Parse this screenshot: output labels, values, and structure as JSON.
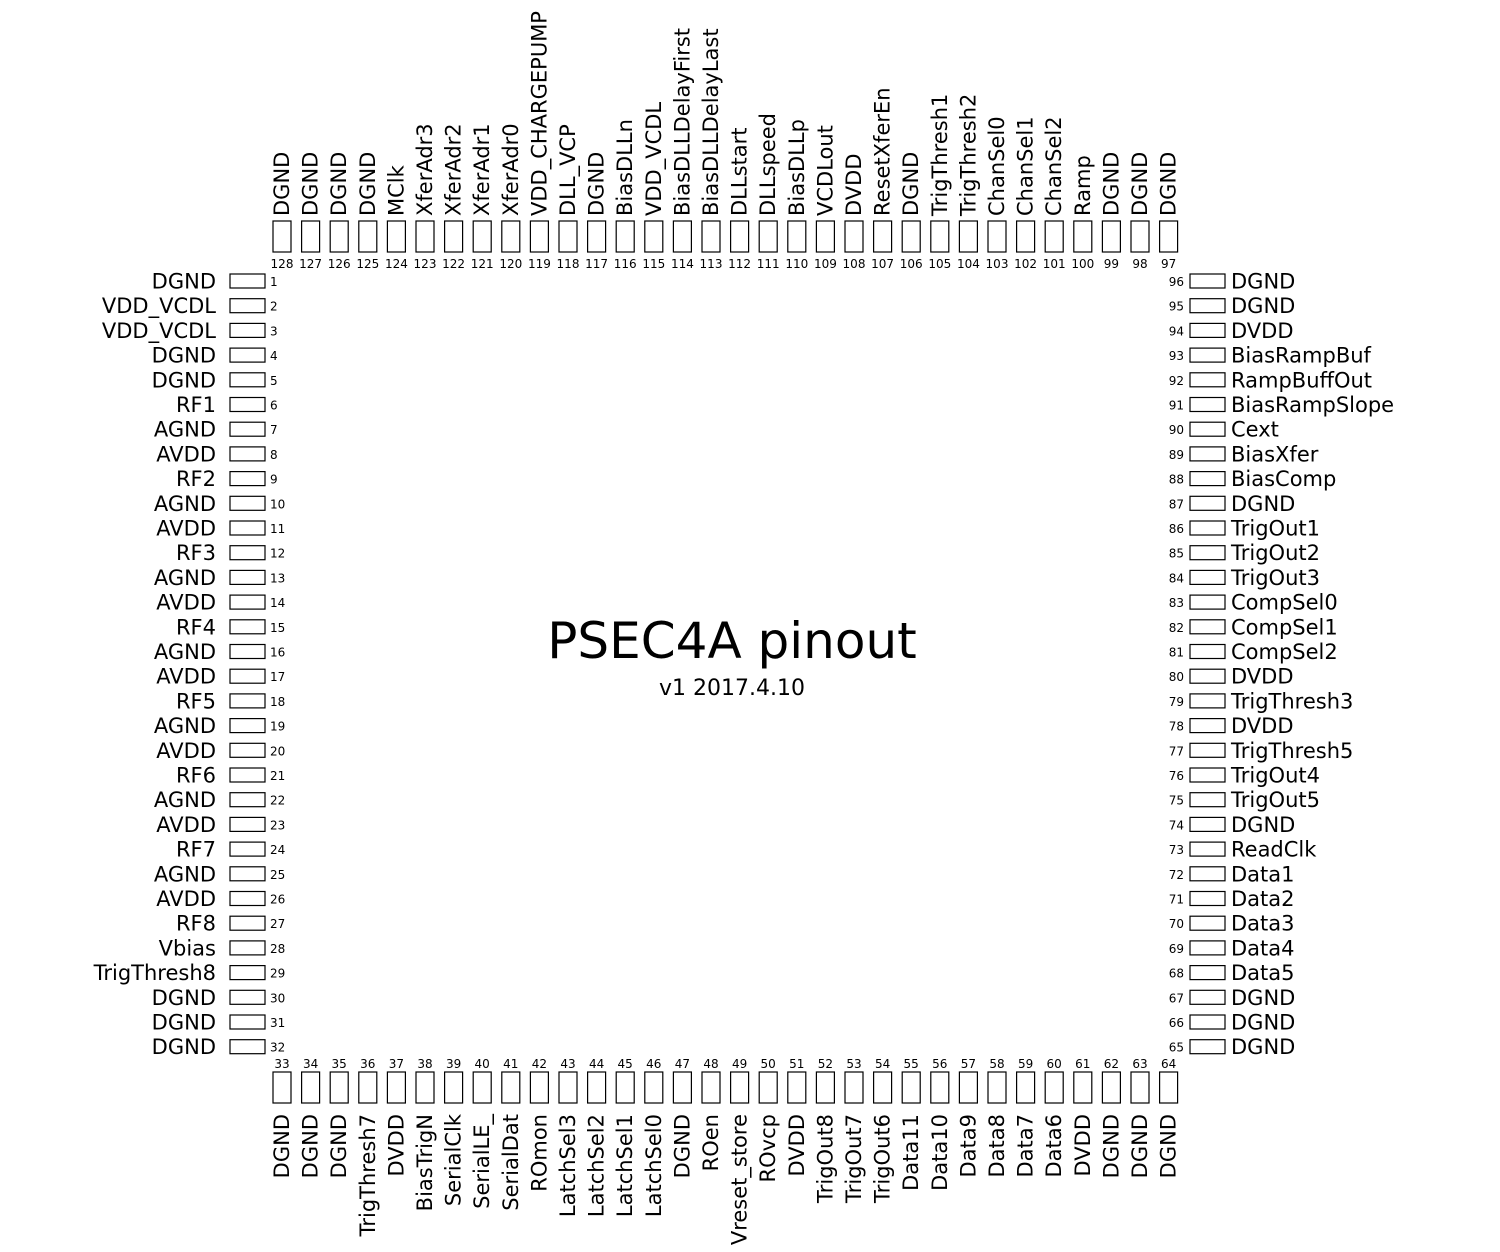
{
  "title": "PSEC4A pinout",
  "subtitle": "v1  2017.4.10",
  "colors": {
    "stroke": "#000000",
    "background": "#ffffff"
  },
  "pins_left": [
    {
      "num": "1",
      "name": "DGND"
    },
    {
      "num": "2",
      "name": "VDD_VCDL"
    },
    {
      "num": "3",
      "name": "VDD_VCDL"
    },
    {
      "num": "4",
      "name": "DGND"
    },
    {
      "num": "5",
      "name": "DGND"
    },
    {
      "num": "6",
      "name": "RF1"
    },
    {
      "num": "7",
      "name": "AGND"
    },
    {
      "num": "8",
      "name": "AVDD"
    },
    {
      "num": "9",
      "name": "RF2"
    },
    {
      "num": "10",
      "name": "AGND"
    },
    {
      "num": "11",
      "name": "AVDD"
    },
    {
      "num": "12",
      "name": "RF3"
    },
    {
      "num": "13",
      "name": "AGND"
    },
    {
      "num": "14",
      "name": "AVDD"
    },
    {
      "num": "15",
      "name": "RF4"
    },
    {
      "num": "16",
      "name": "AGND"
    },
    {
      "num": "17",
      "name": "AVDD"
    },
    {
      "num": "18",
      "name": "RF5"
    },
    {
      "num": "19",
      "name": "AGND"
    },
    {
      "num": "20",
      "name": "AVDD"
    },
    {
      "num": "21",
      "name": "RF6"
    },
    {
      "num": "22",
      "name": "AGND"
    },
    {
      "num": "23",
      "name": "AVDD"
    },
    {
      "num": "24",
      "name": "RF7"
    },
    {
      "num": "25",
      "name": "AGND"
    },
    {
      "num": "26",
      "name": "AVDD"
    },
    {
      "num": "27",
      "name": "RF8"
    },
    {
      "num": "28",
      "name": "Vbias"
    },
    {
      "num": "29",
      "name": "TrigThresh8"
    },
    {
      "num": "30",
      "name": "DGND"
    },
    {
      "num": "31",
      "name": "DGND"
    },
    {
      "num": "32",
      "name": "DGND"
    }
  ],
  "pins_bottom": [
    {
      "num": "33",
      "name": "DGND"
    },
    {
      "num": "34",
      "name": "DGND"
    },
    {
      "num": "35",
      "name": "DGND"
    },
    {
      "num": "36",
      "name": "TrigThresh7"
    },
    {
      "num": "37",
      "name": "DVDD"
    },
    {
      "num": "38",
      "name": "BiasTrigN"
    },
    {
      "num": "39",
      "name": "SerialClk"
    },
    {
      "num": "40",
      "name": "SerialLE_"
    },
    {
      "num": "41",
      "name": "SerialDat"
    },
    {
      "num": "42",
      "name": "ROmon"
    },
    {
      "num": "43",
      "name": "LatchSel3"
    },
    {
      "num": "44",
      "name": "LatchSel2"
    },
    {
      "num": "45",
      "name": "LatchSel1"
    },
    {
      "num": "46",
      "name": "LatchSel0"
    },
    {
      "num": "47",
      "name": "DGND"
    },
    {
      "num": "48",
      "name": "ROen"
    },
    {
      "num": "49",
      "name": "Vreset_store"
    },
    {
      "num": "50",
      "name": "ROvcp"
    },
    {
      "num": "51",
      "name": "DVDD"
    },
    {
      "num": "52",
      "name": "TrigOut8"
    },
    {
      "num": "53",
      "name": "TrigOut7"
    },
    {
      "num": "54",
      "name": "TrigOut6"
    },
    {
      "num": "55",
      "name": "Data11"
    },
    {
      "num": "56",
      "name": "Data10"
    },
    {
      "num": "57",
      "name": "Data9"
    },
    {
      "num": "58",
      "name": "Data8"
    },
    {
      "num": "59",
      "name": "Data7"
    },
    {
      "num": "60",
      "name": "Data6"
    },
    {
      "num": "61",
      "name": "DVDD"
    },
    {
      "num": "62",
      "name": "DGND"
    },
    {
      "num": "63",
      "name": "DGND"
    },
    {
      "num": "64",
      "name": "DGND"
    }
  ],
  "pins_right": [
    {
      "num": "96",
      "name": "DGND"
    },
    {
      "num": "95",
      "name": "DGND"
    },
    {
      "num": "94",
      "name": "DVDD"
    },
    {
      "num": "93",
      "name": "BiasRampBuf"
    },
    {
      "num": "92",
      "name": "RampBuffOut"
    },
    {
      "num": "91",
      "name": "BiasRampSlope"
    },
    {
      "num": "90",
      "name": "Cext"
    },
    {
      "num": "89",
      "name": "BiasXfer"
    },
    {
      "num": "88",
      "name": "BiasComp"
    },
    {
      "num": "87",
      "name": "DGND"
    },
    {
      "num": "86",
      "name": "TrigOut1"
    },
    {
      "num": "85",
      "name": "TrigOut2"
    },
    {
      "num": "84",
      "name": "TrigOut3"
    },
    {
      "num": "83",
      "name": "CompSel0"
    },
    {
      "num": "82",
      "name": "CompSel1"
    },
    {
      "num": "81",
      "name": "CompSel2"
    },
    {
      "num": "80",
      "name": "DVDD"
    },
    {
      "num": "79",
      "name": "TrigThresh3"
    },
    {
      "num": "78",
      "name": "DVDD"
    },
    {
      "num": "77",
      "name": "TrigThresh5"
    },
    {
      "num": "76",
      "name": "TrigOut4"
    },
    {
      "num": "75",
      "name": "TrigOut5"
    },
    {
      "num": "74",
      "name": "DGND"
    },
    {
      "num": "73",
      "name": "ReadClk"
    },
    {
      "num": "72",
      "name": "Data1"
    },
    {
      "num": "71",
      "name": "Data2"
    },
    {
      "num": "70",
      "name": "Data3"
    },
    {
      "num": "69",
      "name": "Data4"
    },
    {
      "num": "68",
      "name": "Data5"
    },
    {
      "num": "67",
      "name": "DGND"
    },
    {
      "num": "66",
      "name": "DGND"
    },
    {
      "num": "65",
      "name": "DGND"
    }
  ],
  "pins_top": [
    {
      "num": "128",
      "name": "DGND"
    },
    {
      "num": "127",
      "name": "DGND"
    },
    {
      "num": "126",
      "name": "DGND"
    },
    {
      "num": "125",
      "name": "DGND"
    },
    {
      "num": "124",
      "name": "MClk"
    },
    {
      "num": "123",
      "name": "XferAdr3"
    },
    {
      "num": "122",
      "name": "XferAdr2"
    },
    {
      "num": "121",
      "name": "XferAdr1"
    },
    {
      "num": "120",
      "name": "XferAdr0"
    },
    {
      "num": "119",
      "name": "VDD_CHARGEPUMP"
    },
    {
      "num": "118",
      "name": "DLL_VCP"
    },
    {
      "num": "117",
      "name": "DGND"
    },
    {
      "num": "116",
      "name": "BiasDLLn"
    },
    {
      "num": "115",
      "name": "VDD_VCDL"
    },
    {
      "num": "114",
      "name": "BiasDLLDelayFirst"
    },
    {
      "num": "113",
      "name": "BiasDLLDelayLast"
    },
    {
      "num": "112",
      "name": "DLLstart"
    },
    {
      "num": "111",
      "name": "DLLspeed"
    },
    {
      "num": "110",
      "name": "BiasDLLp"
    },
    {
      "num": "109",
      "name": "VCDLout"
    },
    {
      "num": "108",
      "name": "DVDD"
    },
    {
      "num": "107",
      "name": "ResetXferEn"
    },
    {
      "num": "106",
      "name": "DGND"
    },
    {
      "num": "105",
      "name": "TrigThresh1"
    },
    {
      "num": "104",
      "name": "TrigThresh2"
    },
    {
      "num": "103",
      "name": "ChanSel0"
    },
    {
      "num": "102",
      "name": "ChanSel1"
    },
    {
      "num": "101",
      "name": "ChanSel2"
    },
    {
      "num": "100",
      "name": "Ramp"
    },
    {
      "num": "99",
      "name": "DGND"
    },
    {
      "num": "98",
      "name": "DGND"
    },
    {
      "num": "97",
      "name": "DGND"
    }
  ]
}
